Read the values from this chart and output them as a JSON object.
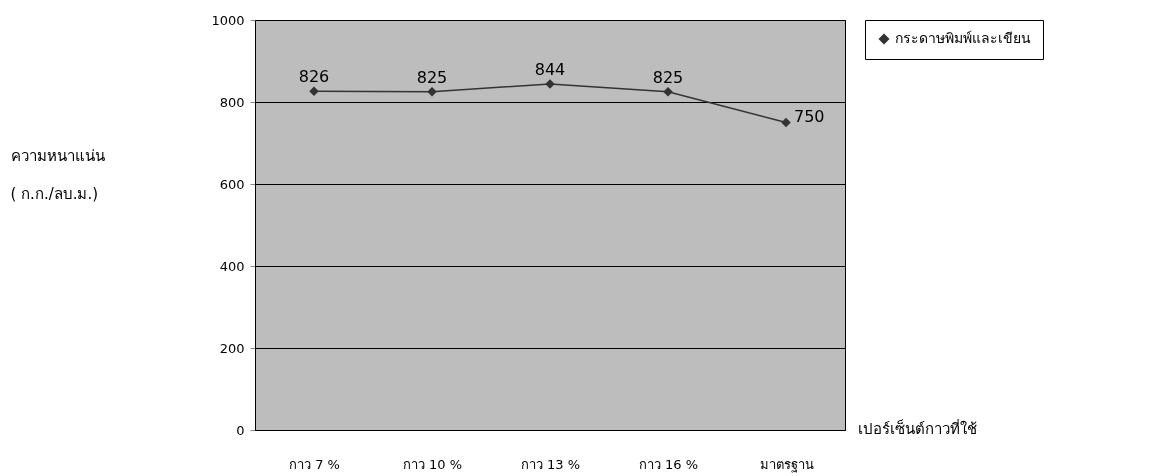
{
  "chart_data": {
    "type": "line",
    "xlabel": "เปอร์เซ็นต์กาวที่ใช้",
    "ylabel": "ความหนาแน่น\n( ก.ก./ลบ.ม.)",
    "categories": [
      "กาว  7 %",
      "กาว  10 %",
      "กาว  13 %",
      "กาว  16 %",
      "มาตรฐาน"
    ],
    "series": [
      {
        "name": "กระดาษพิมพ์และเขียน",
        "color": "#333333",
        "values": [
          826,
          825,
          844,
          825,
          750
        ]
      }
    ],
    "ylim": [
      0,
      1000
    ],
    "yticks": [
      0,
      200,
      400,
      600,
      800,
      1000
    ],
    "grid": "y",
    "legend": "right",
    "marker": "diamond",
    "line_style": "solid",
    "data_labels": true
  }
}
